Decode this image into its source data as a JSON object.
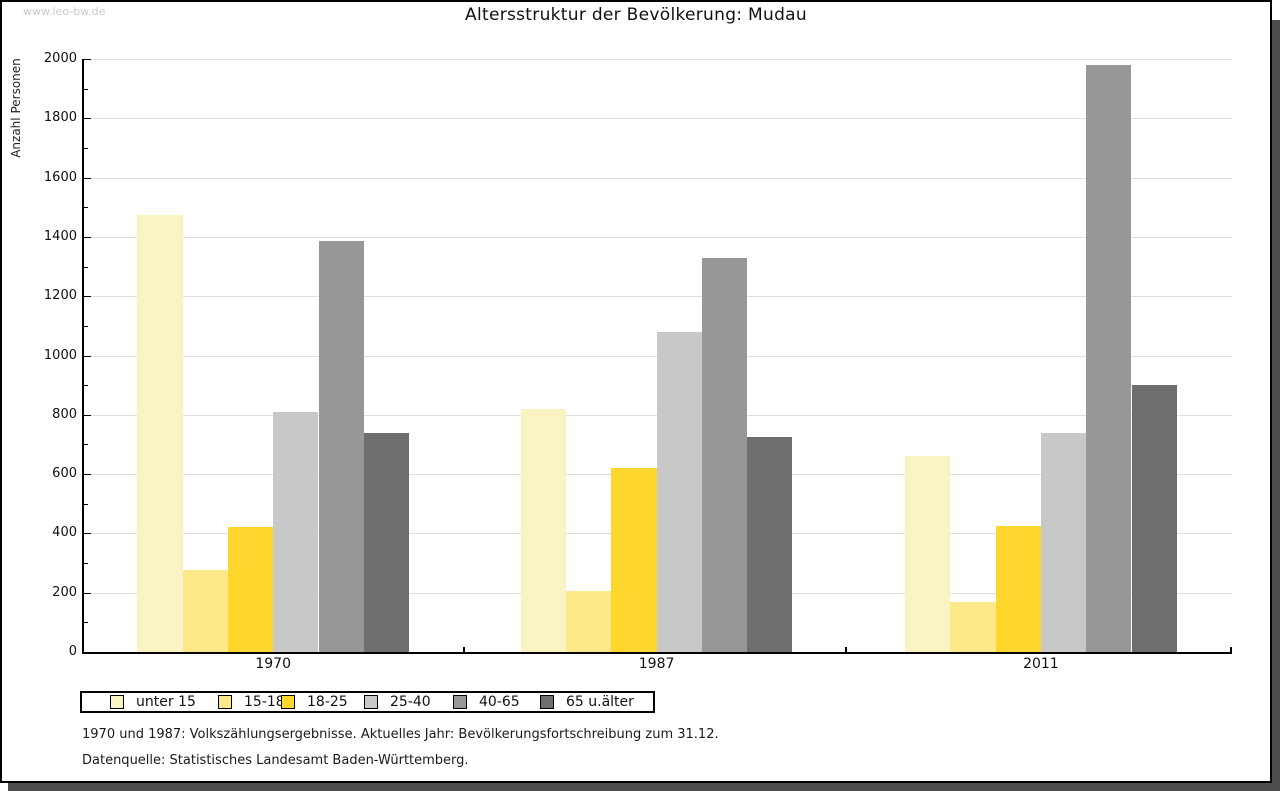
{
  "watermark": "www.leo-bw.de",
  "chart_data": {
    "type": "bar",
    "title": "Altersstruktur der Bevölkerung: Mudau",
    "xlabel": "",
    "ylabel": "Anzahl Personen",
    "ylim": [
      0,
      2000
    ],
    "ytick_step": 200,
    "yticks": [
      0,
      200,
      400,
      600,
      800,
      1000,
      1200,
      1400,
      1600,
      1800,
      2000
    ],
    "grid": true,
    "legend_position": "bottom-left",
    "categories": [
      "1970",
      "1987",
      "2011"
    ],
    "series": [
      {
        "name": "unter 15",
        "color": "#FAF3C3",
        "values": [
          1475,
          820,
          660
        ]
      },
      {
        "name": "15-18",
        "color": "#FDE98A",
        "values": [
          275,
          205,
          170
        ]
      },
      {
        "name": "18-25",
        "color": "#FDD72D",
        "values": [
          420,
          620,
          425
        ]
      },
      {
        "name": "25-40",
        "color": "#C8C8C8",
        "values": [
          810,
          1080,
          740
        ]
      },
      {
        "name": "40-65",
        "color": "#979797",
        "values": [
          1385,
          1330,
          1980
        ]
      },
      {
        "name": "65 u.älter",
        "color": "#6E6E6E",
        "values": [
          740,
          725,
          900
        ]
      }
    ]
  },
  "footnotes": [
    "1970 und 1987: Volkszählungsergebnisse. Aktuelles Jahr: Bevölkerungsfortschreibung zum 31.12.",
    "Datenquelle: Statistisches Landesamt Baden-Württemberg."
  ]
}
